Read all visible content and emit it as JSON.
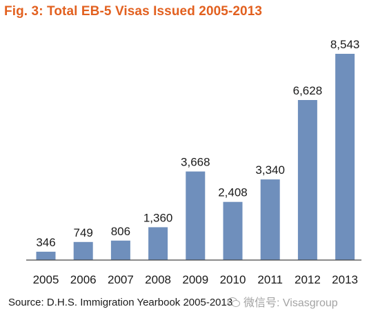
{
  "chart_data": {
    "type": "bar",
    "title": "Fig. 3: Total EB-5 Visas Issued 2005-2013",
    "categories": [
      "2005",
      "2006",
      "2007",
      "2008",
      "2009",
      "2010",
      "2011",
      "2012",
      "2013"
    ],
    "values": [
      346,
      749,
      806,
      1360,
      3668,
      2408,
      3340,
      6628,
      8543
    ],
    "value_labels": [
      "346",
      "749",
      "806",
      "1,360",
      "3,668",
      "2,408",
      "3,340",
      "6,628",
      "8,543"
    ],
    "ylim": [
      0,
      9200
    ],
    "grid": false,
    "legend": "none",
    "bar_color": "#6f8fbc",
    "title_color": "#e2601f"
  },
  "source": "Source: D.H.S. Immigration Yearbook 2005-2013",
  "watermark": "微信号: Visasgroup"
}
